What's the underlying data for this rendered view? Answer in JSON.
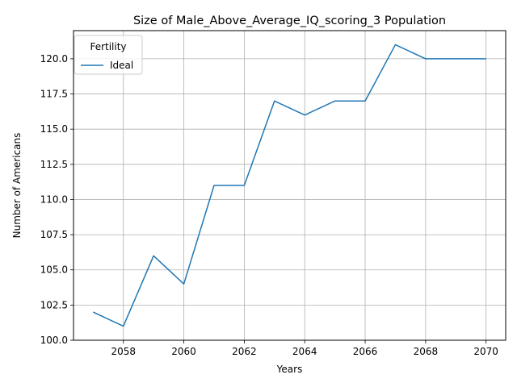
{
  "chart_data": {
    "type": "line",
    "title": "Size of Male_Above_Average_IQ_scoring_3 Population",
    "xlabel": "Years",
    "ylabel": "Number of Americans",
    "x": [
      2057,
      2058,
      2059,
      2060,
      2061,
      2062,
      2063,
      2064,
      2065,
      2066,
      2067,
      2068,
      2069,
      2070
    ],
    "series": [
      {
        "name": "Ideal",
        "color": "#1f77b4",
        "values": [
          102,
          101,
          106,
          104,
          111,
          111,
          117,
          116,
          117,
          117,
          121,
          120,
          120,
          120
        ]
      }
    ],
    "xlim": [
      2056.35,
      2070.65
    ],
    "ylim": [
      100.0,
      122.0
    ],
    "xticks": [
      2058,
      2060,
      2062,
      2064,
      2066,
      2068,
      2070
    ],
    "yticks": [
      100.0,
      102.5,
      105.0,
      107.5,
      110.0,
      112.5,
      115.0,
      117.5,
      120.0
    ],
    "ytick_labels": [
      "100.0",
      "102.5",
      "105.0",
      "107.5",
      "110.0",
      "112.5",
      "115.0",
      "117.5",
      "120.0"
    ],
    "grid": true,
    "legend": {
      "title": "Fertility",
      "placement": "top-left"
    },
    "colors": {
      "grid": "#b0b0b0",
      "axes": "#000000"
    }
  }
}
